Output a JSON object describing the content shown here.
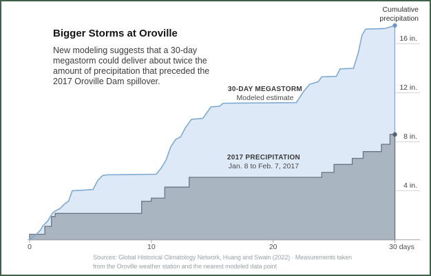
{
  "header": {
    "title": "Bigger Storms at Oroville",
    "subtitle": "New modeling suggests that a 30-day megastorm could deliver about twice the amount of precipitation that preceded the 2017 Oroville Dam spillover."
  },
  "chart_data": {
    "type": "area",
    "title": "Bigger Storms at Oroville",
    "ylabel": "Cumulative precipitation",
    "xlabel": "days",
    "xlim": [
      0,
      30
    ],
    "ylim": [
      0,
      18
    ],
    "grid": "short right-side tick rules only",
    "legend_position": "inline annotations on chart",
    "x_ticks": [
      {
        "v": 0,
        "label": "0"
      },
      {
        "v": 10,
        "label": "10"
      },
      {
        "v": 20,
        "label": "20"
      },
      {
        "v": 30,
        "label": "30 days"
      }
    ],
    "y_ticks": [
      {
        "v": 4,
        "label": "4 in."
      },
      {
        "v": 8,
        "label": "8 in."
      },
      {
        "v": 12,
        "label": "12 in."
      },
      {
        "v": 16,
        "label": "16 in."
      }
    ],
    "series": [
      {
        "name": "30-DAY MEGASTORM",
        "subtitle": "Modeled estimate",
        "curve": "linear",
        "fill": "#dde9f7",
        "line": "#7ea9d2",
        "dot": "#6d9ac8",
        "end_value_in": 17.5,
        "points": [
          [
            0,
            0
          ],
          [
            0.3,
            0.25
          ],
          [
            0.6,
            0.5
          ],
          [
            0.9,
            0.8
          ],
          [
            1.1,
            1.15
          ],
          [
            1.5,
            1.55
          ],
          [
            1.9,
            2.2
          ],
          [
            2.1,
            2.35
          ],
          [
            2.5,
            2.55
          ],
          [
            2.9,
            2.95
          ],
          [
            3.2,
            3.15
          ],
          [
            3.5,
            4.0
          ],
          [
            5.2,
            4.1
          ],
          [
            5.6,
            4.85
          ],
          [
            6.0,
            5.25
          ],
          [
            6.4,
            5.3
          ],
          [
            10.4,
            5.35
          ],
          [
            10.8,
            5.85
          ],
          [
            11.2,
            6.5
          ],
          [
            11.6,
            7.6
          ],
          [
            12.0,
            8.2
          ],
          [
            12.4,
            8.4
          ],
          [
            12.8,
            9.15
          ],
          [
            13.3,
            9.85
          ],
          [
            14.2,
            9.9
          ],
          [
            14.4,
            10.15
          ],
          [
            14.9,
            10.85
          ],
          [
            15.6,
            10.9
          ],
          [
            15.9,
            11.15
          ],
          [
            21.9,
            11.2
          ],
          [
            22.5,
            12.1
          ],
          [
            23.0,
            12.7
          ],
          [
            23.7,
            12.9
          ],
          [
            24.0,
            13.3
          ],
          [
            25.2,
            13.35
          ],
          [
            25.5,
            13.95
          ],
          [
            26.6,
            14.0
          ],
          [
            27.0,
            15.3
          ],
          [
            27.3,
            16.7
          ],
          [
            27.6,
            17.2
          ],
          [
            29.2,
            17.25
          ],
          [
            30,
            17.5
          ]
        ]
      },
      {
        "name": "2017 PRECIPITATION",
        "subtitle": "Jan. 8 to Feb. 7, 2017",
        "curve": "step-after",
        "fill": "#a9b5c1",
        "line": "#68747f",
        "dot": "#566271",
        "end_value_in": 8.6,
        "points": [
          [
            0,
            0.45
          ],
          [
            1.25,
            1.1
          ],
          [
            1.8,
            1.9
          ],
          [
            2.1,
            2.15
          ],
          [
            9.2,
            3.15
          ],
          [
            10.0,
            3.4
          ],
          [
            11.1,
            4.3
          ],
          [
            13.1,
            5.1
          ],
          [
            24.0,
            5.5
          ],
          [
            25.0,
            6.15
          ],
          [
            26.5,
            6.65
          ],
          [
            27.4,
            7.2
          ],
          [
            28.9,
            7.8
          ],
          [
            29.6,
            8.6
          ]
        ]
      }
    ],
    "colors": {
      "axis": "#a5a9ad",
      "grid_rule": "#d3d7db",
      "frame_border": "#41604a"
    }
  },
  "source": {
    "text": "Sources: Global Historical Climatology Network, Huang and Swain (2022) · Measurements taken from the Oroville weather station and the nearest modeled data point"
  }
}
